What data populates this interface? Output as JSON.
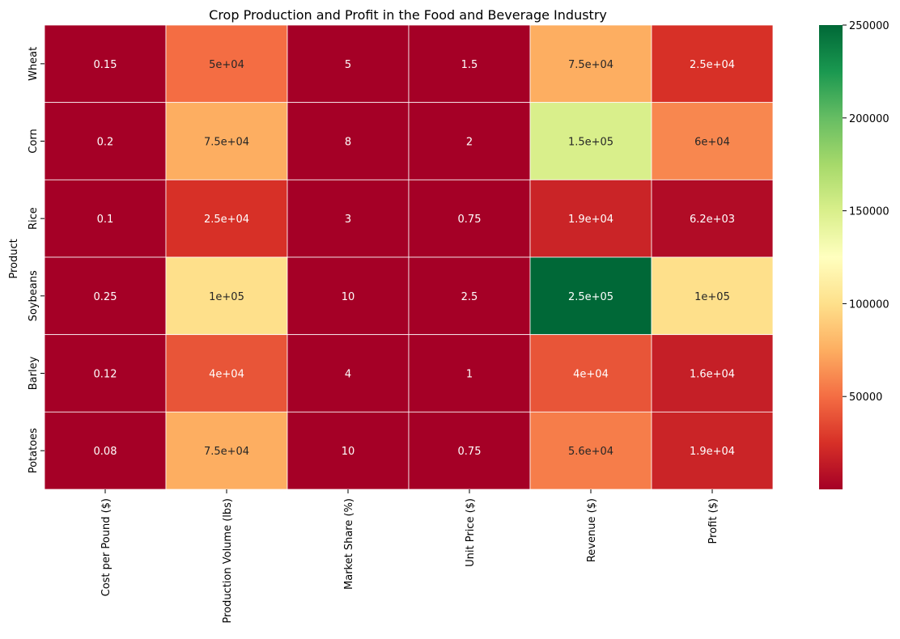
{
  "chart_data": {
    "type": "heatmap",
    "title": "Crop Production and Profit in the Food and Beverage Industry",
    "ylabel": "Product",
    "xlabel": "",
    "rows": [
      "Wheat",
      "Corn",
      "Rice",
      "Soybeans",
      "Barley",
      "Potatoes"
    ],
    "columns": [
      "Cost per Pound ($)",
      "Production Volume (lbs)",
      "Market Share (%)",
      "Unit Price ($)",
      "Revenue ($)",
      "Profit ($)"
    ],
    "values": [
      [
        0.15,
        50000,
        5,
        1.5,
        75000,
        25000
      ],
      [
        0.2,
        75000,
        8,
        2,
        150000,
        60000
      ],
      [
        0.1,
        25000,
        3,
        0.75,
        18750,
        6250
      ],
      [
        0.25,
        100000,
        10,
        2.5,
        250000,
        100000
      ],
      [
        0.12,
        40000,
        4,
        1,
        40000,
        16000
      ],
      [
        0.08,
        75000,
        10,
        0.75,
        56250,
        18750
      ]
    ],
    "labels": [
      [
        "0.15",
        "5e+04",
        "5",
        "1.5",
        "7.5e+04",
        "2.5e+04"
      ],
      [
        "0.2",
        "7.5e+04",
        "8",
        "2",
        "1.5e+05",
        "6e+04"
      ],
      [
        "0.1",
        "2.5e+04",
        "3",
        "0.75",
        "1.9e+04",
        "6.2e+03"
      ],
      [
        "0.25",
        "1e+05",
        "10",
        "2.5",
        "2.5e+05",
        "1e+05"
      ],
      [
        "0.12",
        "4e+04",
        "4",
        "1",
        "4e+04",
        "1.6e+04"
      ],
      [
        "0.08",
        "7.5e+04",
        "10",
        "0.75",
        "5.6e+04",
        "1.9e+04"
      ]
    ],
    "colormap": "RdYlGn",
    "vmin": 0.08,
    "vmax": 250000,
    "colorbar_ticks": [
      50000,
      100000,
      150000,
      200000,
      250000
    ],
    "colorbar_tick_labels": [
      "50000",
      "100000",
      "150000",
      "200000",
      "250000"
    ],
    "grid": true,
    "gridline_color": "#ffffff",
    "legend": "colorbar-right"
  }
}
